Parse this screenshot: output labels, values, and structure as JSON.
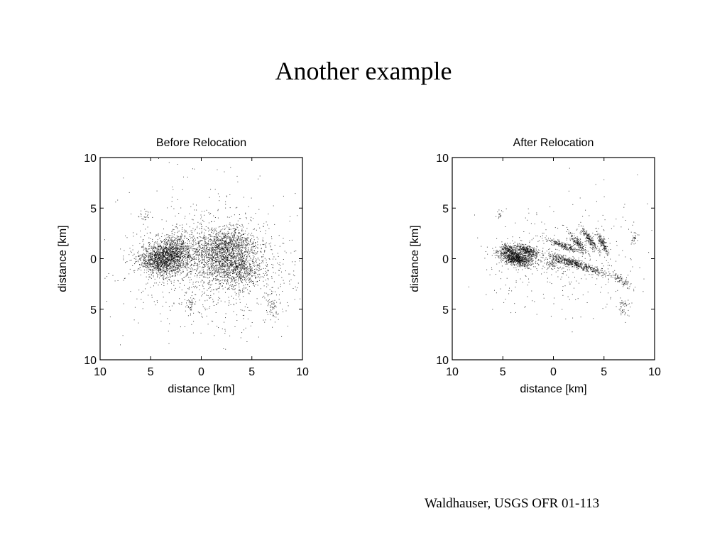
{
  "slide": {
    "title": "Another example",
    "credit": "Waldhauser, USGS OFR 01-113"
  },
  "colors": {
    "background": "#ffffff",
    "points": "#000000",
    "axes": "#000000"
  },
  "chart_data": [
    {
      "type": "scatter",
      "title": "Before Relocation",
      "xlabel": "distance [km]",
      "ylabel": "distance [km]",
      "xlim": [
        -10,
        10
      ],
      "ylim": [
        -10,
        10
      ],
      "xtick_labels": [
        "10",
        "5",
        "0",
        "5",
        "10"
      ],
      "ytick_labels": [
        "10",
        "5",
        "0",
        "5",
        "10"
      ],
      "grid": false,
      "clusters": [
        {
          "cx": -3.9,
          "cy": 0.0,
          "sx": 1.1,
          "sy": 0.8,
          "n": 1400,
          "angle": 0
        },
        {
          "cx": -2.4,
          "cy": 0.8,
          "sx": 0.8,
          "sy": 0.9,
          "n": 500,
          "angle": 0
        },
        {
          "cx": 2.6,
          "cy": 1.2,
          "sx": 1.5,
          "sy": 0.9,
          "n": 1000,
          "angle": 0
        },
        {
          "cx": 3.4,
          "cy": -1.0,
          "sx": 1.3,
          "sy": 0.8,
          "n": 700,
          "angle": 0
        },
        {
          "cx": 0.3,
          "cy": 0.3,
          "sx": 1.2,
          "sy": 1.2,
          "n": 350,
          "angle": 0
        },
        {
          "cx": 7.0,
          "cy": -4.8,
          "sx": 0.35,
          "sy": 0.6,
          "n": 60,
          "angle": 0
        },
        {
          "cx": -1.1,
          "cy": -4.6,
          "sx": 0.3,
          "sy": 0.4,
          "n": 40,
          "angle": 0
        },
        {
          "cx": -5.5,
          "cy": 4.5,
          "sx": 0.3,
          "sy": 0.3,
          "n": 20,
          "angle": 0
        },
        {
          "cx": 1.2,
          "cy": -0.5,
          "sx": 4.0,
          "sy": 2.6,
          "n": 900,
          "angle": 0
        },
        {
          "cx": 0.5,
          "cy": 0.0,
          "sx": 4.5,
          "sy": 3.8,
          "n": 350,
          "angle": 0
        }
      ]
    },
    {
      "type": "scatter",
      "title": "After Relocation",
      "xlabel": "distance [km]",
      "ylabel": "distance [km]",
      "xlim": [
        -10,
        10
      ],
      "ylim": [
        -10,
        10
      ],
      "xtick_labels": [
        "10",
        "5",
        "0",
        "5",
        "10"
      ],
      "ytick_labels": [
        "10",
        "5",
        "0",
        "5",
        "10"
      ],
      "grid": false,
      "clusters": [
        {
          "cx": -3.8,
          "cy": 0.1,
          "sx": 0.9,
          "sy": 0.35,
          "n": 900,
          "angle": -15
        },
        {
          "cx": -2.6,
          "cy": 0.8,
          "sx": 0.7,
          "sy": 0.25,
          "n": 350,
          "angle": -25
        },
        {
          "cx": -4.5,
          "cy": 1.0,
          "sx": 0.4,
          "sy": 0.2,
          "n": 150,
          "angle": -30
        },
        {
          "cx": 1.0,
          "cy": 1.3,
          "sx": 0.9,
          "sy": 0.15,
          "n": 220,
          "angle": -20
        },
        {
          "cx": 2.4,
          "cy": 1.6,
          "sx": 0.6,
          "sy": 0.15,
          "n": 160,
          "angle": -50
        },
        {
          "cx": 3.6,
          "cy": 1.9,
          "sx": 0.7,
          "sy": 0.15,
          "n": 200,
          "angle": -55
        },
        {
          "cx": 4.8,
          "cy": 1.6,
          "sx": 0.6,
          "sy": 0.15,
          "n": 160,
          "angle": -60
        },
        {
          "cx": 2.8,
          "cy": -0.7,
          "sx": 1.6,
          "sy": 0.2,
          "n": 380,
          "angle": -18
        },
        {
          "cx": 1.3,
          "cy": -0.2,
          "sx": 0.8,
          "sy": 0.2,
          "n": 160,
          "angle": -15
        },
        {
          "cx": 0.0,
          "cy": -0.4,
          "sx": 0.5,
          "sy": 0.3,
          "n": 90,
          "angle": 0
        },
        {
          "cx": 6.8,
          "cy": -2.2,
          "sx": 0.6,
          "sy": 0.2,
          "n": 70,
          "angle": -35
        },
        {
          "cx": 8.0,
          "cy": 2.1,
          "sx": 0.15,
          "sy": 0.3,
          "n": 30,
          "angle": 0
        },
        {
          "cx": 7.0,
          "cy": -4.8,
          "sx": 0.25,
          "sy": 0.5,
          "n": 50,
          "angle": 0
        },
        {
          "cx": -5.3,
          "cy": 4.4,
          "sx": 0.2,
          "sy": 0.2,
          "n": 15,
          "angle": 0
        },
        {
          "cx": 1.0,
          "cy": 0.0,
          "sx": 4.0,
          "sy": 2.6,
          "n": 380,
          "angle": 0
        }
      ]
    }
  ]
}
